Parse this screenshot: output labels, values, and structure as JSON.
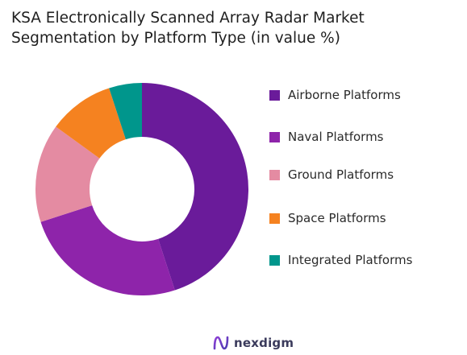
{
  "chart_data": {
    "type": "pie",
    "title_lines": [
      "KSA Electronically Scanned Array Radar Market",
      "Segmentation by Platform Type (in value %)"
    ],
    "categories": [
      "Airborne Platforms",
      "Naval Platforms",
      "Ground Platforms",
      "Space Platforms",
      "Integrated Platforms"
    ],
    "values": [
      45,
      25,
      15,
      10,
      5
    ],
    "colors": [
      "#6a1b9a",
      "#8e24aa",
      "#e48ba2",
      "#f58220",
      "#00968c"
    ],
    "donut": true,
    "legend_position": "right"
  },
  "brand": {
    "name": "nexdigm",
    "logo_icon": "nexdigm-logo-icon"
  }
}
